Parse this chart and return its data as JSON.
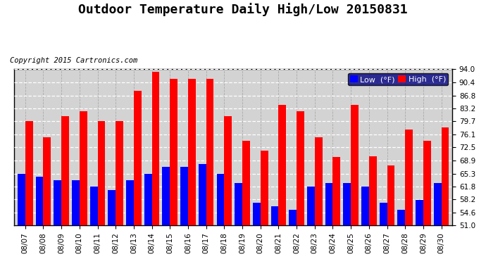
{
  "title": "Outdoor Temperature Daily High/Low 20150831",
  "copyright": "Copyright 2015 Cartronics.com",
  "legend_low": "Low  (°F)",
  "legend_high": "High  (°F)",
  "dates": [
    "08/07",
    "08/08",
    "08/09",
    "08/10",
    "08/11",
    "08/12",
    "08/13",
    "08/14",
    "08/15",
    "08/16",
    "08/17",
    "08/18",
    "08/19",
    "08/20",
    "08/21",
    "08/22",
    "08/23",
    "08/24",
    "08/25",
    "08/26",
    "08/27",
    "08/28",
    "08/29",
    "08/30"
  ],
  "highs": [
    79.7,
    75.2,
    81.0,
    82.4,
    79.7,
    79.7,
    88.0,
    93.2,
    91.4,
    91.4,
    91.4,
    81.0,
    74.3,
    71.6,
    84.2,
    82.4,
    75.2,
    69.8,
    84.2,
    70.0,
    67.5,
    77.5,
    74.3,
    78.0
  ],
  "lows": [
    65.3,
    64.4,
    63.5,
    63.5,
    61.7,
    60.8,
    63.5,
    65.3,
    67.1,
    67.1,
    68.0,
    65.3,
    62.6,
    57.2,
    56.3,
    55.4,
    61.7,
    62.6,
    62.6,
    61.7,
    57.2,
    55.4,
    58.1,
    62.6
  ],
  "high_color": "#ff0000",
  "low_color": "#0000ff",
  "background_color": "#ffffff",
  "plot_bg_color": "#ffffff",
  "grid_color": "#aaaaaa",
  "ylim_min": 51.0,
  "ylim_max": 94.0,
  "yticks": [
    51.0,
    54.6,
    58.2,
    61.8,
    65.3,
    68.9,
    72.5,
    76.1,
    79.7,
    83.2,
    86.8,
    90.4,
    94.0
  ],
  "title_fontsize": 13,
  "copyright_fontsize": 7.5,
  "tick_fontsize": 7.5,
  "legend_fontsize": 8,
  "bar_width": 0.42
}
